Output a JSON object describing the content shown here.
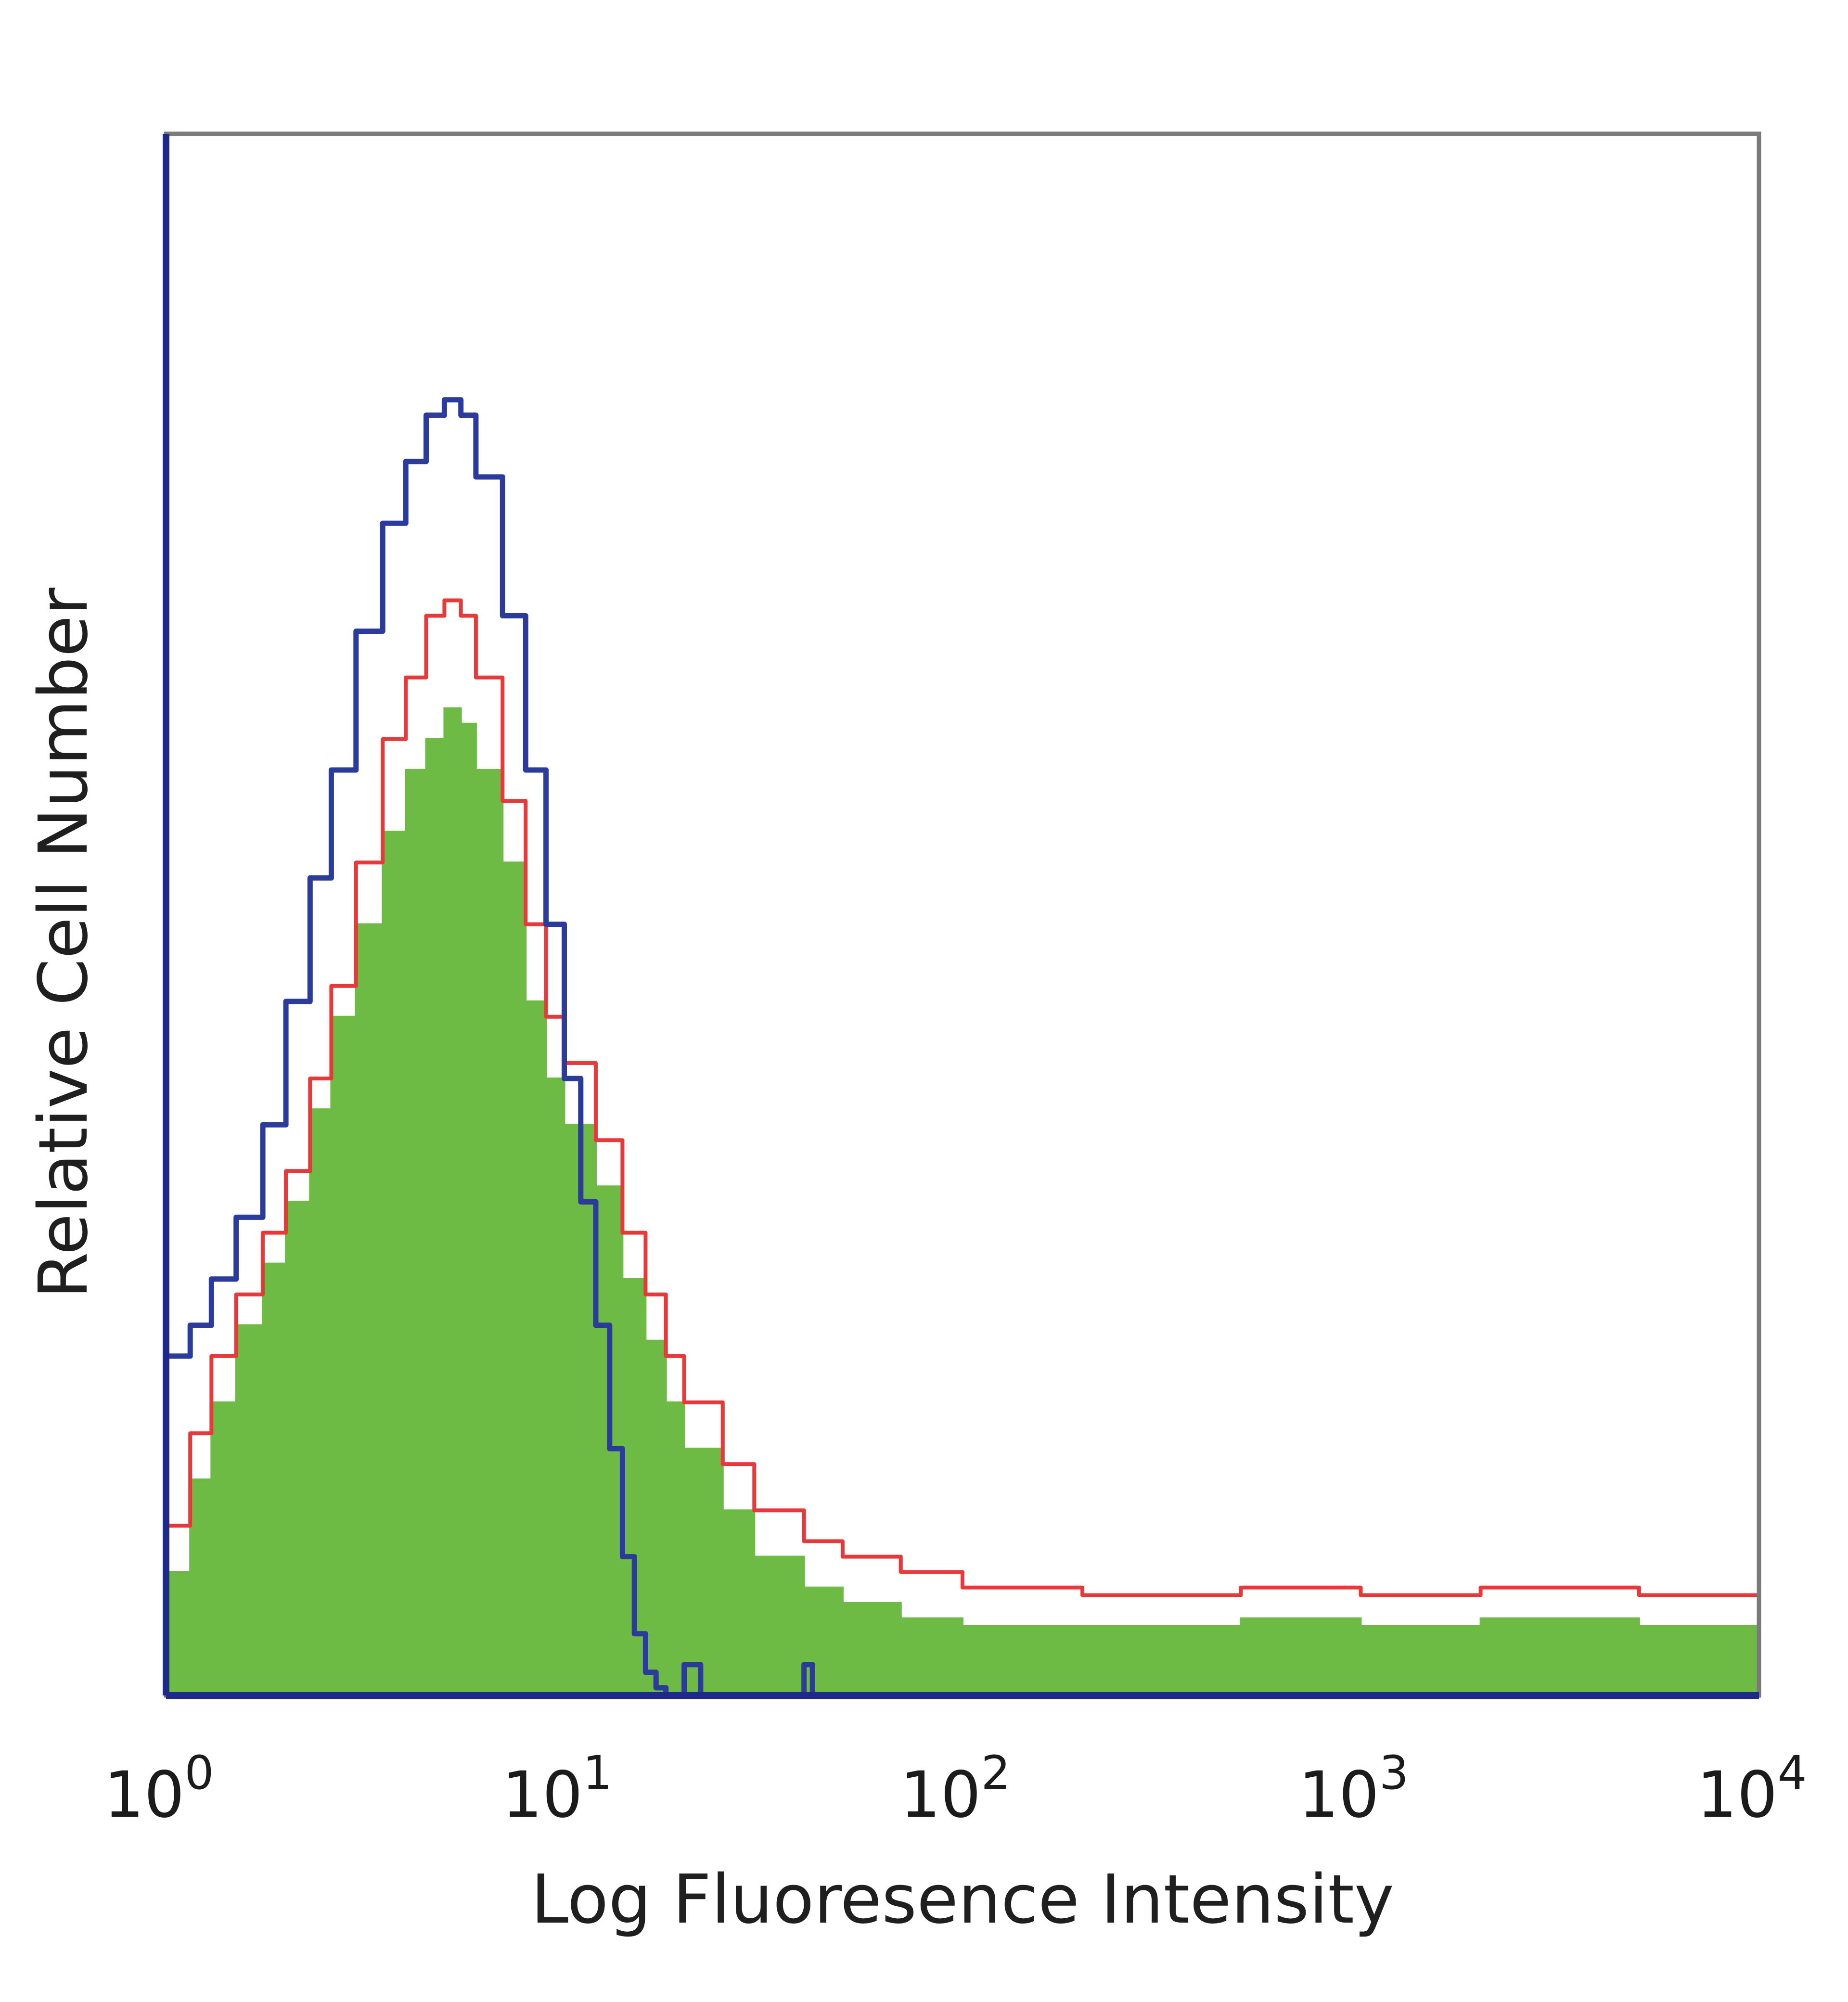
{
  "chart_data": {
    "type": "area",
    "title": "",
    "xlabel": "Log Fluoresence Intensity",
    "ylabel": "Relative Cell Number",
    "x_scale": "log",
    "xlim": [
      1,
      10000
    ],
    "ylim": [
      0,
      100
    ],
    "grid": false,
    "legend": "none",
    "x_tick_labels": [
      {
        "base": "10",
        "exp": "0"
      },
      {
        "base": "10",
        "exp": "1"
      },
      {
        "base": "10",
        "exp": "2"
      },
      {
        "base": "10",
        "exp": "3"
      },
      {
        "base": "10",
        "exp": "4"
      }
    ],
    "series": [
      {
        "style": "filled",
        "color": "#6dbb45",
        "points": [
          [
            1.0,
            8
          ],
          [
            1.15,
            14
          ],
          [
            1.3,
            19
          ],
          [
            1.5,
            24
          ],
          [
            1.75,
            28
          ],
          [
            2.0,
            32
          ],
          [
            2.3,
            38
          ],
          [
            2.6,
            44
          ],
          [
            3.0,
            50
          ],
          [
            3.5,
            56
          ],
          [
            4.0,
            60
          ],
          [
            4.5,
            62
          ],
          [
            5.0,
            64
          ],
          [
            5.5,
            63
          ],
          [
            6.0,
            60
          ],
          [
            7.0,
            54
          ],
          [
            8.0,
            45
          ],
          [
            9.0,
            40
          ],
          [
            10.0,
            37
          ],
          [
            12.0,
            33
          ],
          [
            14.0,
            27
          ],
          [
            16.0,
            23
          ],
          [
            18.0,
            19
          ],
          [
            20.0,
            16
          ],
          [
            25.0,
            12
          ],
          [
            30.0,
            9
          ],
          [
            40.0,
            7
          ],
          [
            50.0,
            6
          ],
          [
            70.0,
            5
          ],
          [
            100.0,
            4.5
          ],
          [
            200.0,
            4.5
          ],
          [
            500.0,
            5
          ],
          [
            1000.0,
            4.5
          ],
          [
            2000.0,
            5
          ],
          [
            5000.0,
            4.5
          ],
          [
            10000.0,
            4.5
          ]
        ]
      },
      {
        "style": "outline",
        "color": "#e8393a",
        "points": [
          [
            1.0,
            11
          ],
          [
            1.15,
            17
          ],
          [
            1.3,
            22
          ],
          [
            1.5,
            26
          ],
          [
            1.75,
            30
          ],
          [
            2.0,
            34
          ],
          [
            2.3,
            40
          ],
          [
            2.6,
            46
          ],
          [
            3.0,
            54
          ],
          [
            3.5,
            62
          ],
          [
            4.0,
            66
          ],
          [
            4.5,
            70
          ],
          [
            5.0,
            71
          ],
          [
            5.5,
            70
          ],
          [
            6.0,
            66
          ],
          [
            7.0,
            58
          ],
          [
            8.0,
            50
          ],
          [
            9.0,
            44
          ],
          [
            10.0,
            41
          ],
          [
            12.0,
            36
          ],
          [
            14.0,
            30
          ],
          [
            16.0,
            26
          ],
          [
            18.0,
            22
          ],
          [
            20.0,
            19
          ],
          [
            25.0,
            15
          ],
          [
            30.0,
            12
          ],
          [
            40.0,
            10
          ],
          [
            50.0,
            9
          ],
          [
            70.0,
            8
          ],
          [
            100.0,
            7
          ],
          [
            200.0,
            6.5
          ],
          [
            500.0,
            7
          ],
          [
            1000.0,
            6.5
          ],
          [
            2000.0,
            7
          ],
          [
            5000.0,
            6.5
          ],
          [
            10000.0,
            6.5
          ]
        ]
      },
      {
        "style": "outline",
        "color": "#2b3b9c",
        "points": [
          [
            1.0,
            22
          ],
          [
            1.15,
            24
          ],
          [
            1.3,
            27
          ],
          [
            1.5,
            31
          ],
          [
            1.75,
            37
          ],
          [
            2.0,
            45
          ],
          [
            2.3,
            53
          ],
          [
            2.6,
            60
          ],
          [
            3.0,
            69
          ],
          [
            3.5,
            76
          ],
          [
            4.0,
            80
          ],
          [
            4.5,
            83
          ],
          [
            5.0,
            84
          ],
          [
            5.5,
            83
          ],
          [
            6.0,
            79
          ],
          [
            7.0,
            70
          ],
          [
            8.0,
            60
          ],
          [
            9.0,
            50
          ],
          [
            10.0,
            40
          ],
          [
            11.0,
            32
          ],
          [
            12.0,
            24
          ],
          [
            13.0,
            16
          ],
          [
            14.0,
            9
          ],
          [
            15.0,
            4
          ],
          [
            16.0,
            1.5
          ],
          [
            17.0,
            0.5
          ],
          [
            18.0,
            0
          ],
          [
            20.0,
            2
          ],
          [
            22.0,
            0
          ],
          [
            30.0,
            0
          ],
          [
            40.0,
            2
          ],
          [
            42.0,
            0
          ],
          [
            10000.0,
            0
          ]
        ]
      }
    ]
  }
}
